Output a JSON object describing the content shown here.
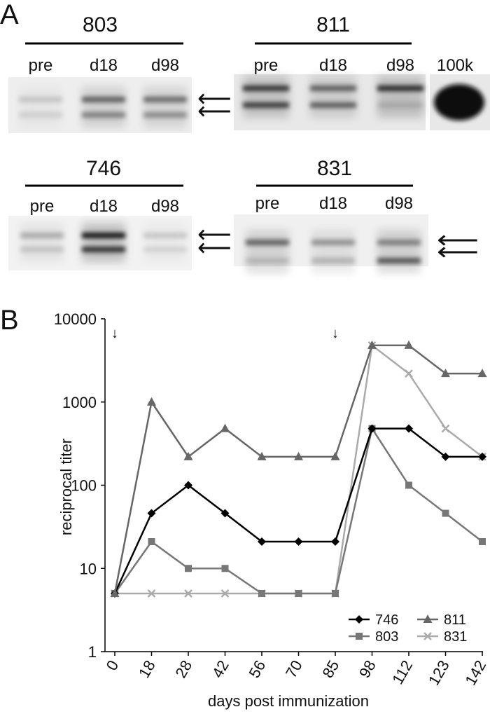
{
  "panel_a": {
    "label": "A",
    "blots": [
      {
        "title": "803",
        "lanes": [
          "pre",
          "d18",
          "d98"
        ],
        "bands": [
          [
            0.15,
            0.1
          ],
          [
            0.55,
            0.4
          ],
          [
            0.5,
            0.35
          ]
        ]
      },
      {
        "title": "811",
        "lanes": [
          "pre",
          "d18",
          "d98"
        ],
        "bands": [
          [
            0.75,
            0.7
          ],
          [
            0.55,
            0.55
          ],
          [
            0.8,
            0.12
          ]
        ],
        "extra_lane": "100k"
      },
      {
        "title": "746",
        "lanes": [
          "pre",
          "d18",
          "d98"
        ],
        "bands": [
          [
            0.25,
            0.15
          ],
          [
            0.9,
            0.75
          ],
          [
            0.15,
            0.1
          ]
        ]
      },
      {
        "title": "831",
        "lanes": [
          "pre",
          "d18",
          "d98"
        ],
        "bands": [
          [
            0.55,
            0.15
          ],
          [
            0.35,
            0.2
          ],
          [
            0.4,
            0.6
          ]
        ]
      }
    ]
  },
  "chart_data": {
    "panel_label": "B",
    "type": "line",
    "xlabel": "days post immunization",
    "ylabel": "reciprocal titer",
    "yscale": "log",
    "ylim": [
      1,
      10000
    ],
    "yticks": [
      "1",
      "10",
      "100",
      "1000",
      "10000"
    ],
    "categories": [
      "0",
      "18",
      "28",
      "42",
      "56",
      "70",
      "85",
      "98",
      "112",
      "123",
      "142"
    ],
    "markers": [
      {
        "category": "0",
        "symbol": "↓"
      },
      {
        "category": "85",
        "symbol": "↓"
      }
    ],
    "legend_position": "bottom-right",
    "series": [
      {
        "name": "746",
        "marker": "diamond",
        "color": "#000000",
        "values": [
          5,
          46,
          100,
          46,
          21,
          21,
          21,
          480,
          480,
          220,
          220
        ]
      },
      {
        "name": "811",
        "marker": "triangle",
        "color": "#666666",
        "values": [
          5,
          1000,
          220,
          480,
          220,
          220,
          220,
          4800,
          4800,
          2200,
          2200
        ]
      },
      {
        "name": "803",
        "marker": "square",
        "color": "#777777",
        "values": [
          5,
          21,
          10,
          10,
          5,
          5,
          5,
          480,
          100,
          46,
          21
        ]
      },
      {
        "name": "831",
        "marker": "x",
        "color": "#aaaaaa",
        "values": [
          5,
          5,
          5,
          5,
          5,
          5,
          5,
          4800,
          2200,
          480,
          220
        ]
      }
    ]
  }
}
